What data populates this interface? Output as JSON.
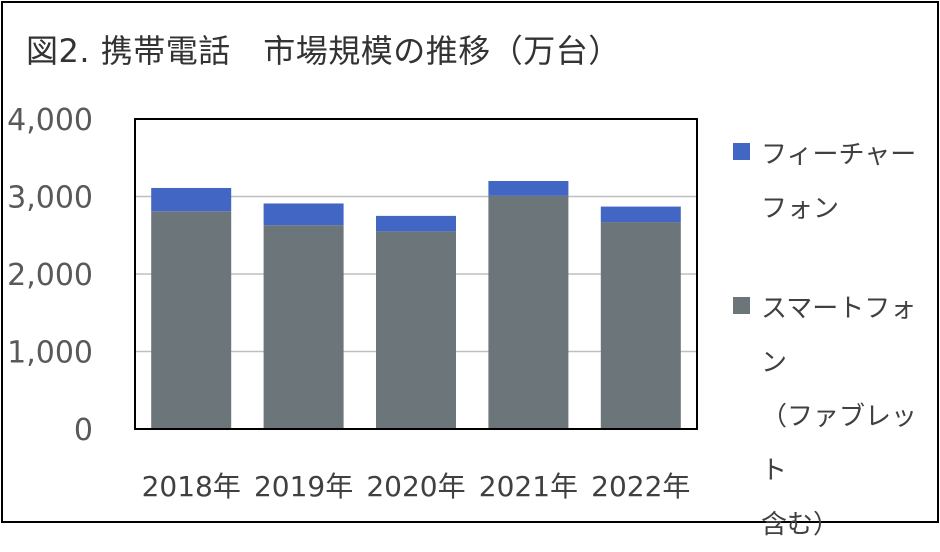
{
  "title": "図2. 携帯電話　市場規模の推移（万台）",
  "chart_data": {
    "type": "bar",
    "stacked": true,
    "title": "図2. 携帯電話　市場規模の推移（万台）",
    "categories": [
      "2018年",
      "2019年",
      "2020年",
      "2021年",
      "2022年"
    ],
    "series": [
      {
        "name": "スマートフォン\n（ファブレット\n含む）",
        "values": [
          2810,
          2630,
          2550,
          3010,
          2670
        ],
        "color": "#6c757a"
      },
      {
        "name": "フィーチャー\nフォン",
        "values": [
          300,
          280,
          200,
          190,
          200
        ],
        "color": "#4166c4"
      }
    ],
    "ylim": [
      0,
      4000
    ],
    "yticks": [
      "0",
      "1,000",
      "2,000",
      "3,000",
      "4,000"
    ],
    "ytick_values": [
      0,
      1000,
      2000,
      3000,
      4000
    ],
    "grid": true,
    "legend": "right"
  }
}
